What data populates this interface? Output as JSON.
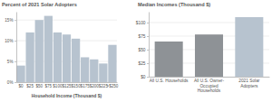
{
  "chart_data": [
    {
      "type": "bar",
      "title": "Percent of 2021 Solar Adopters",
      "xlabel": "Household Income (Thousand $)",
      "categories": [
        "$0",
        "$25",
        "$50",
        "$75",
        "$100",
        "$125",
        "$150",
        "$175",
        "$200",
        "$225",
        ">$250"
      ],
      "values": [
        4,
        12,
        15,
        16,
        12,
        11.5,
        10.5,
        6,
        5.5,
        4.5,
        9
      ],
      "color": "#b7c3cf",
      "ylim": [
        0,
        17
      ],
      "yticks": [
        {
          "value": 0,
          "label": "0%"
        },
        {
          "value": 5,
          "label": "5%"
        },
        {
          "value": 10,
          "label": "10%"
        },
        {
          "value": 15,
          "label": "15%"
        }
      ],
      "grid": true
    },
    {
      "type": "bar",
      "title": "Median Incomes (Thousand $)",
      "categories": [
        "All U.S. Households",
        "All U.S. Owner-Occupied Households",
        "2021 Solar Adopters"
      ],
      "values": [
        65,
        78,
        110
      ],
      "colors": [
        "#8e9296",
        "#8e9296",
        "#b7c3cf"
      ],
      "ylim": [
        0,
        120
      ],
      "yticks": [
        {
          "value": 0,
          "label": "$0"
        },
        {
          "value": 25,
          "label": "$25"
        },
        {
          "value": 50,
          "label": "$50"
        },
        {
          "value": 75,
          "label": "$75"
        },
        {
          "value": 100,
          "label": "$100"
        }
      ],
      "grid": true
    }
  ]
}
